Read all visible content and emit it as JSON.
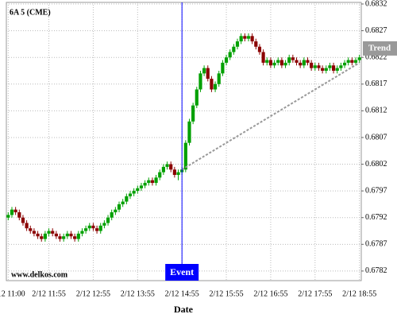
{
  "chart_data": {
    "type": "candlestick",
    "title": "6A 5 (CME)",
    "watermark": "www.delkos.com",
    "x_label": "Date",
    "x": [
      "2/12 11:00",
      "2/12 11:05",
      "2/12 11:10",
      "2/12 11:15",
      "2/12 11:20",
      "2/12 11:25",
      "2/12 11:30",
      "2/12 11:35",
      "2/12 11:40",
      "2/12 11:45",
      "2/12 11:50",
      "2/12 11:55",
      "2/12 12:00",
      "2/12 12:05",
      "2/12 12:10",
      "2/12 12:15",
      "2/12 12:20",
      "2/12 12:25",
      "2/12 12:30",
      "2/12 12:35",
      "2/12 12:40",
      "2/12 12:45",
      "2/12 12:50",
      "2/12 12:55",
      "2/12 13:00",
      "2/12 13:05",
      "2/12 13:10",
      "2/12 13:15",
      "2/12 13:20",
      "2/12 13:25",
      "2/12 13:30",
      "2/12 13:35",
      "2/12 13:40",
      "2/12 13:45",
      "2/12 13:50",
      "2/12 13:55",
      "2/12 14:00",
      "2/12 14:05",
      "2/12 14:10",
      "2/12 14:15",
      "2/12 14:20",
      "2/12 14:25",
      "2/12 14:30",
      "2/12 14:35",
      "2/12 14:40",
      "2/12 14:45",
      "2/12 14:50",
      "2/12 14:55",
      "2/12 15:00",
      "2/12 15:05",
      "2/12 15:10",
      "2/12 15:15",
      "2/12 15:20",
      "2/12 15:25",
      "2/12 15:30",
      "2/12 15:35",
      "2/12 15:40",
      "2/12 15:45",
      "2/12 15:50",
      "2/12 15:55",
      "2/12 16:00",
      "2/12 16:05",
      "2/12 16:10",
      "2/12 16:15",
      "2/12 16:20",
      "2/12 16:25",
      "2/12 16:30",
      "2/12 16:35",
      "2/12 16:40",
      "2/12 16:45",
      "2/12 16:50",
      "2/12 16:55",
      "2/12 17:00",
      "2/12 17:05",
      "2/12 17:10",
      "2/12 17:15",
      "2/12 17:20",
      "2/12 17:25",
      "2/12 17:30",
      "2/12 17:35",
      "2/12 17:40",
      "2/12 17:45",
      "2/12 17:50",
      "2/12 17:55",
      "2/12 18:00",
      "2/12 18:05",
      "2/12 18:10",
      "2/12 18:15",
      "2/12 18:20",
      "2/12 18:25",
      "2/12 18:30",
      "2/12 18:35",
      "2/12 18:40",
      "2/12 18:45",
      "2/12 18:50",
      "2/12 18:55"
    ],
    "open": [
      0.6792,
      0.67925,
      0.67935,
      0.6793,
      0.6792,
      0.6791,
      0.679,
      0.67895,
      0.6789,
      0.67885,
      0.6788,
      0.6789,
      0.67895,
      0.6789,
      0.67885,
      0.6788,
      0.67885,
      0.6789,
      0.67885,
      0.6788,
      0.6789,
      0.67895,
      0.679,
      0.67905,
      0.679,
      0.67895,
      0.67905,
      0.6791,
      0.6792,
      0.6793,
      0.67935,
      0.67945,
      0.6795,
      0.6796,
      0.67965,
      0.6797,
      0.67975,
      0.6798,
      0.67985,
      0.6799,
      0.67985,
      0.67995,
      0.68005,
      0.68015,
      0.6802,
      0.6801,
      0.68,
      0.68005,
      0.6801,
      0.6806,
      0.681,
      0.6813,
      0.6816,
      0.6819,
      0.682,
      0.6818,
      0.6816,
      0.6817,
      0.6819,
      0.6821,
      0.6822,
      0.6823,
      0.6824,
      0.6825,
      0.6826,
      0.68255,
      0.6826,
      0.6825,
      0.6824,
      0.6823,
      0.6821,
      0.68215,
      0.68205,
      0.6821,
      0.68215,
      0.68205,
      0.6821,
      0.6822,
      0.68215,
      0.6821,
      0.68205,
      0.68215,
      0.6821,
      0.682,
      0.68205,
      0.682,
      0.68195,
      0.682,
      0.68205,
      0.68195,
      0.682,
      0.68205,
      0.6821,
      0.68215,
      0.6821,
      0.68215
    ],
    "high": [
      0.6793,
      0.6794,
      0.6794,
      0.67935,
      0.67925,
      0.67915,
      0.67905,
      0.679,
      0.67895,
      0.6789,
      0.67895,
      0.679,
      0.679,
      0.67895,
      0.6789,
      0.6789,
      0.67895,
      0.67895,
      0.6789,
      0.67895,
      0.679,
      0.67905,
      0.6791,
      0.6791,
      0.67905,
      0.6791,
      0.67915,
      0.67925,
      0.67935,
      0.6794,
      0.6795,
      0.67955,
      0.67965,
      0.6797,
      0.67975,
      0.6798,
      0.67985,
      0.6799,
      0.67995,
      0.67995,
      0.68,
      0.6801,
      0.6802,
      0.68025,
      0.68025,
      0.68015,
      0.6801,
      0.68015,
      0.68065,
      0.68105,
      0.68135,
      0.68165,
      0.68195,
      0.68205,
      0.68205,
      0.68185,
      0.68175,
      0.68195,
      0.68215,
      0.68225,
      0.68235,
      0.68245,
      0.68255,
      0.68265,
      0.68265,
      0.68265,
      0.68265,
      0.68255,
      0.68245,
      0.68235,
      0.6822,
      0.6822,
      0.68215,
      0.6822,
      0.6822,
      0.68215,
      0.68225,
      0.68225,
      0.6822,
      0.68215,
      0.6822,
      0.6822,
      0.68215,
      0.6821,
      0.6821,
      0.68205,
      0.68205,
      0.6821,
      0.6821,
      0.68205,
      0.6821,
      0.68215,
      0.6822,
      0.6822,
      0.6822,
      0.68225
    ],
    "low": [
      0.67915,
      0.6792,
      0.67925,
      0.67915,
      0.67905,
      0.67895,
      0.6789,
      0.67885,
      0.6788,
      0.67875,
      0.67875,
      0.67885,
      0.67885,
      0.6788,
      0.67875,
      0.67875,
      0.6788,
      0.6788,
      0.67875,
      0.67875,
      0.67885,
      0.6789,
      0.67895,
      0.67895,
      0.6789,
      0.6789,
      0.679,
      0.67905,
      0.67915,
      0.67925,
      0.6793,
      0.6794,
      0.67945,
      0.67955,
      0.6796,
      0.67965,
      0.6797,
      0.67975,
      0.6798,
      0.6798,
      0.6798,
      0.6799,
      0.68,
      0.6801,
      0.68005,
      0.67995,
      0.6799,
      0.68,
      0.68005,
      0.68055,
      0.68095,
      0.68125,
      0.68155,
      0.68185,
      0.68175,
      0.68155,
      0.68155,
      0.68165,
      0.68185,
      0.68205,
      0.68215,
      0.68225,
      0.68235,
      0.68245,
      0.6825,
      0.6825,
      0.68245,
      0.68235,
      0.68225,
      0.68205,
      0.68205,
      0.682,
      0.682,
      0.68205,
      0.682,
      0.682,
      0.68205,
      0.6821,
      0.68205,
      0.682,
      0.682,
      0.68205,
      0.68195,
      0.68195,
      0.68195,
      0.6819,
      0.6819,
      0.68195,
      0.6819,
      0.6819,
      0.68195,
      0.682,
      0.68205,
      0.68205,
      0.68205,
      0.6821
    ],
    "close": [
      0.67925,
      0.67935,
      0.6793,
      0.6792,
      0.6791,
      0.679,
      0.67895,
      0.6789,
      0.67885,
      0.6788,
      0.6789,
      0.67895,
      0.6789,
      0.67885,
      0.6788,
      0.67885,
      0.6789,
      0.67885,
      0.6788,
      0.6789,
      0.67895,
      0.679,
      0.67905,
      0.679,
      0.67895,
      0.67905,
      0.6791,
      0.6792,
      0.6793,
      0.67935,
      0.67945,
      0.6795,
      0.6796,
      0.67965,
      0.6797,
      0.67975,
      0.6798,
      0.67985,
      0.6799,
      0.67985,
      0.67995,
      0.68005,
      0.68015,
      0.6802,
      0.6801,
      0.68,
      0.68005,
      0.6801,
      0.6806,
      0.681,
      0.6813,
      0.6816,
      0.6819,
      0.682,
      0.6818,
      0.6816,
      0.6817,
      0.6819,
      0.6821,
      0.6822,
      0.6823,
      0.6824,
      0.6825,
      0.6826,
      0.68255,
      0.6826,
      0.6825,
      0.6824,
      0.6823,
      0.6821,
      0.68215,
      0.68205,
      0.6821,
      0.68215,
      0.68205,
      0.6821,
      0.6822,
      0.68215,
      0.6821,
      0.68205,
      0.68215,
      0.6821,
      0.682,
      0.68205,
      0.682,
      0.68195,
      0.682,
      0.68205,
      0.68195,
      0.682,
      0.68205,
      0.6821,
      0.68215,
      0.6821,
      0.68215,
      0.6822
    ],
    "up_color": "#00a000",
    "down_color": "#8b0000",
    "ylim": [
      0.67802,
      0.68323
    ],
    "yticks": [
      0.6782,
      0.6787,
      0.6792,
      0.6797,
      0.6802,
      0.6807,
      0.6812,
      0.6817,
      0.6822,
      0.6827,
      0.6832
    ],
    "xticks": [
      "2/12 11:00",
      "2/12 11:55",
      "2/12 12:55",
      "2/12 13:55",
      "2/12 14:55",
      "2/12 15:55",
      "2/12 16:55",
      "2/12 17:55",
      "2/12 18:55"
    ],
    "grid": true,
    "event": {
      "label": "Event",
      "x": "2/12 14:55",
      "color": "#0000ff"
    },
    "trend": {
      "label": "Trend",
      "x": [
        "2/12 14:55",
        "2/12 18:55"
      ],
      "y": [
        0.6801,
        0.6821
      ],
      "color": "#999999"
    }
  }
}
